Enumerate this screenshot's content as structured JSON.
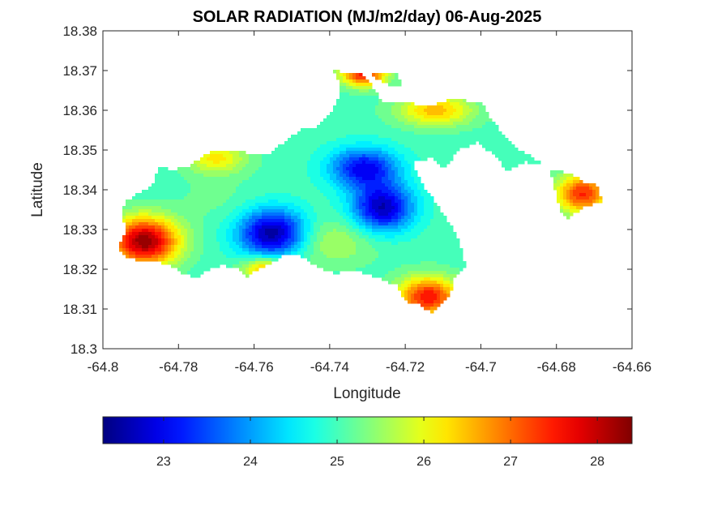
{
  "chart_data": {
    "type": "heatmap",
    "title": "SOLAR RADIATION (MJ/m2/day) 06-Aug-2025",
    "xlabel": "Longitude",
    "ylabel": "Latitude",
    "xlim": [
      -64.8,
      -64.66
    ],
    "ylim": [
      18.3,
      18.38
    ],
    "xticks": [
      -64.8,
      -64.78,
      -64.76,
      -64.74,
      -64.72,
      -64.7,
      -64.68,
      -64.66
    ],
    "xtick_labels": [
      "-64.8",
      "-64.78",
      "-64.76",
      "-64.74",
      "-64.72",
      "-64.7",
      "-64.68",
      "-64.66"
    ],
    "yticks": [
      18.3,
      18.31,
      18.32,
      18.33,
      18.34,
      18.35,
      18.36,
      18.37,
      18.38
    ],
    "ytick_labels": [
      "18.3",
      "18.31",
      "18.32",
      "18.33",
      "18.34",
      "18.35",
      "18.36",
      "18.37",
      "18.38"
    ],
    "colormap": "jet",
    "colorbar": {
      "range": [
        22.3,
        28.4
      ],
      "ticks": [
        23,
        24,
        25,
        26,
        27,
        28
      ],
      "tick_labels": [
        "23",
        "24",
        "25",
        "26",
        "27",
        "28"
      ],
      "location": "bottom"
    },
    "grid": false,
    "regions": [
      {
        "name": "",
        "outline": [
          [
            -64.794,
            18.337
          ],
          [
            -64.791,
            18.339
          ],
          [
            -64.787,
            18.341
          ],
          [
            -64.786,
            18.344
          ],
          [
            -64.785,
            18.346
          ],
          [
            -64.782,
            18.345
          ],
          [
            -64.777,
            18.346
          ],
          [
            -64.773,
            18.349
          ],
          [
            -64.769,
            18.35
          ],
          [
            -64.765,
            18.35
          ],
          [
            -64.76,
            18.349
          ],
          [
            -64.756,
            18.349
          ],
          [
            -64.752,
            18.352
          ],
          [
            -64.748,
            18.355
          ],
          [
            -64.743,
            18.356
          ],
          [
            -64.74,
            18.359
          ],
          [
            -64.738,
            18.362
          ],
          [
            -64.737,
            18.366
          ],
          [
            -64.739,
            18.37
          ],
          [
            -64.731,
            18.369
          ],
          [
            -64.726,
            18.362
          ],
          [
            -64.72,
            18.362
          ],
          [
            -64.713,
            18.361
          ],
          [
            -64.708,
            18.363
          ],
          [
            -64.7,
            18.362
          ],
          [
            -64.698,
            18.359
          ],
          [
            -64.695,
            18.355
          ],
          [
            -64.69,
            18.35
          ],
          [
            -64.686,
            18.348
          ],
          [
            -64.681,
            18.345
          ],
          [
            -64.676,
            18.344
          ],
          [
            -64.673,
            18.342
          ],
          [
            -64.669,
            18.341
          ],
          [
            -64.668,
            18.337
          ],
          [
            -64.672,
            18.336
          ],
          [
            -64.675,
            18.334
          ],
          [
            -64.677,
            18.333
          ],
          [
            -64.679,
            18.335
          ],
          [
            -64.682,
            18.346
          ],
          [
            -64.688,
            18.347
          ],
          [
            -64.693,
            18.345
          ],
          [
            -64.697,
            18.349
          ],
          [
            -64.701,
            18.352
          ],
          [
            -64.706,
            18.35
          ],
          [
            -64.71,
            18.345
          ],
          [
            -64.713,
            18.348
          ],
          [
            -64.718,
            18.347
          ],
          [
            -64.716,
            18.342
          ],
          [
            -64.712,
            18.337
          ],
          [
            -64.708,
            18.331
          ],
          [
            -64.706,
            18.328
          ],
          [
            -64.704,
            18.321
          ],
          [
            -64.707,
            18.318
          ],
          [
            -64.708,
            18.314
          ],
          [
            -64.711,
            18.311
          ],
          [
            -64.713,
            18.309
          ],
          [
            -64.716,
            18.311
          ],
          [
            -64.72,
            18.312
          ],
          [
            -64.722,
            18.316
          ],
          [
            -64.728,
            18.318
          ],
          [
            -64.734,
            18.32
          ],
          [
            -64.738,
            18.319
          ],
          [
            -64.742,
            18.32
          ],
          [
            -64.747,
            18.323
          ],
          [
            -64.751,
            18.324
          ],
          [
            -64.755,
            18.322
          ],
          [
            -64.759,
            18.32
          ],
          [
            -64.762,
            18.318
          ],
          [
            -64.764,
            18.32
          ],
          [
            -64.768,
            18.321
          ],
          [
            -64.772,
            18.32
          ],
          [
            -64.775,
            18.318
          ],
          [
            -64.779,
            18.319
          ],
          [
            -64.782,
            18.321
          ],
          [
            -64.786,
            18.322
          ],
          [
            -64.79,
            18.322
          ],
          [
            -64.794,
            18.323
          ],
          [
            -64.796,
            18.325
          ],
          [
            -64.794,
            18.33
          ],
          [
            -64.795,
            18.334
          ]
        ]
      },
      {
        "name": "",
        "outline": [
          [
            -64.729,
            18.369
          ],
          [
            -64.722,
            18.369
          ],
          [
            -64.721,
            18.366
          ],
          [
            -64.724,
            18.366
          ]
        ]
      }
    ],
    "hotspots": [
      {
        "lon": -64.755,
        "lat": 18.329,
        "value": 22.4,
        "spread_lon": 0.009,
        "spread_lat": 0.006
      },
      {
        "lon": -64.726,
        "lat": 18.3355,
        "value": 22.6,
        "spread_lon": 0.008,
        "spread_lat": 0.006
      },
      {
        "lon": -64.731,
        "lat": 18.3455,
        "value": 23.0,
        "spread_lon": 0.009,
        "spread_lat": 0.005
      },
      {
        "lon": -64.789,
        "lat": 18.327,
        "value": 28.3,
        "spread_lon": 0.009,
        "spread_lat": 0.006
      },
      {
        "lon": -64.714,
        "lat": 18.313,
        "value": 27.6,
        "spread_lon": 0.008,
        "spread_lat": 0.005
      },
      {
        "lon": -64.673,
        "lat": 18.339,
        "value": 27.4,
        "spread_lon": 0.007,
        "spread_lat": 0.005
      },
      {
        "lon": -64.731,
        "lat": 18.369,
        "value": 27.5,
        "spread_lon": 0.006,
        "spread_lat": 0.003
      },
      {
        "lon": -64.712,
        "lat": 18.36,
        "value": 26.5,
        "spread_lon": 0.01,
        "spread_lat": 0.004
      },
      {
        "lon": -64.77,
        "lat": 18.348,
        "value": 26.2,
        "spread_lon": 0.008,
        "spread_lat": 0.004
      },
      {
        "lon": -64.757,
        "lat": 18.32,
        "value": 26.7,
        "spread_lon": 0.006,
        "spread_lat": 0.003
      },
      {
        "lon": -64.74,
        "lat": 18.327,
        "value": 25.7,
        "spread_lon": 0.012,
        "spread_lat": 0.006
      },
      {
        "lon": -64.77,
        "lat": 18.338,
        "value": 25.2,
        "spread_lon": 0.01,
        "spread_lat": 0.006
      }
    ],
    "base_value": 25.0
  }
}
